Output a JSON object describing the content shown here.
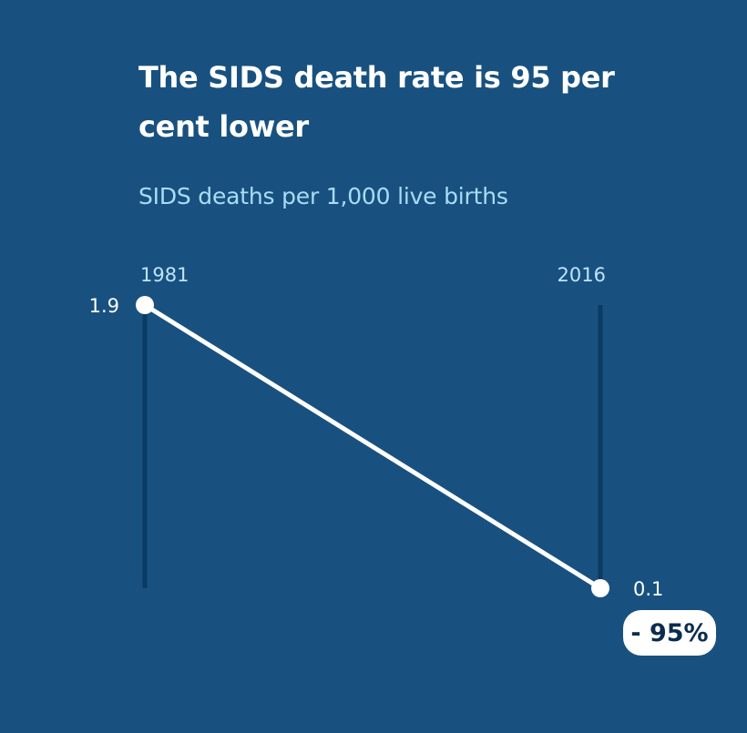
{
  "title": "The SIDS death rate is 95 per cent lower",
  "subtitle": "SIDS deaths per 1,000 live births",
  "colors": {
    "background": "#18517f",
    "line": "#ffffff",
    "axis": "#0b3a63",
    "title": "#ffffff",
    "subtitle": "#a9dcf7",
    "tick_label": "#bfe4fa",
    "badge_bg": "#ffffff",
    "badge_text": "#0b2d4d"
  },
  "chart_data": {
    "type": "line",
    "title": "The SIDS death rate is 95 per cent lower",
    "subtitle": "SIDS deaths per 1,000 live births",
    "categories": [
      "1981",
      "2016"
    ],
    "series": [
      {
        "values": [
          1.9,
          0.1
        ]
      }
    ],
    "value_labels": [
      "1.9",
      "0.1"
    ],
    "change_label": "- 95%",
    "ylim": [
      0.1,
      1.9
    ],
    "grid": false,
    "legend": "none"
  }
}
